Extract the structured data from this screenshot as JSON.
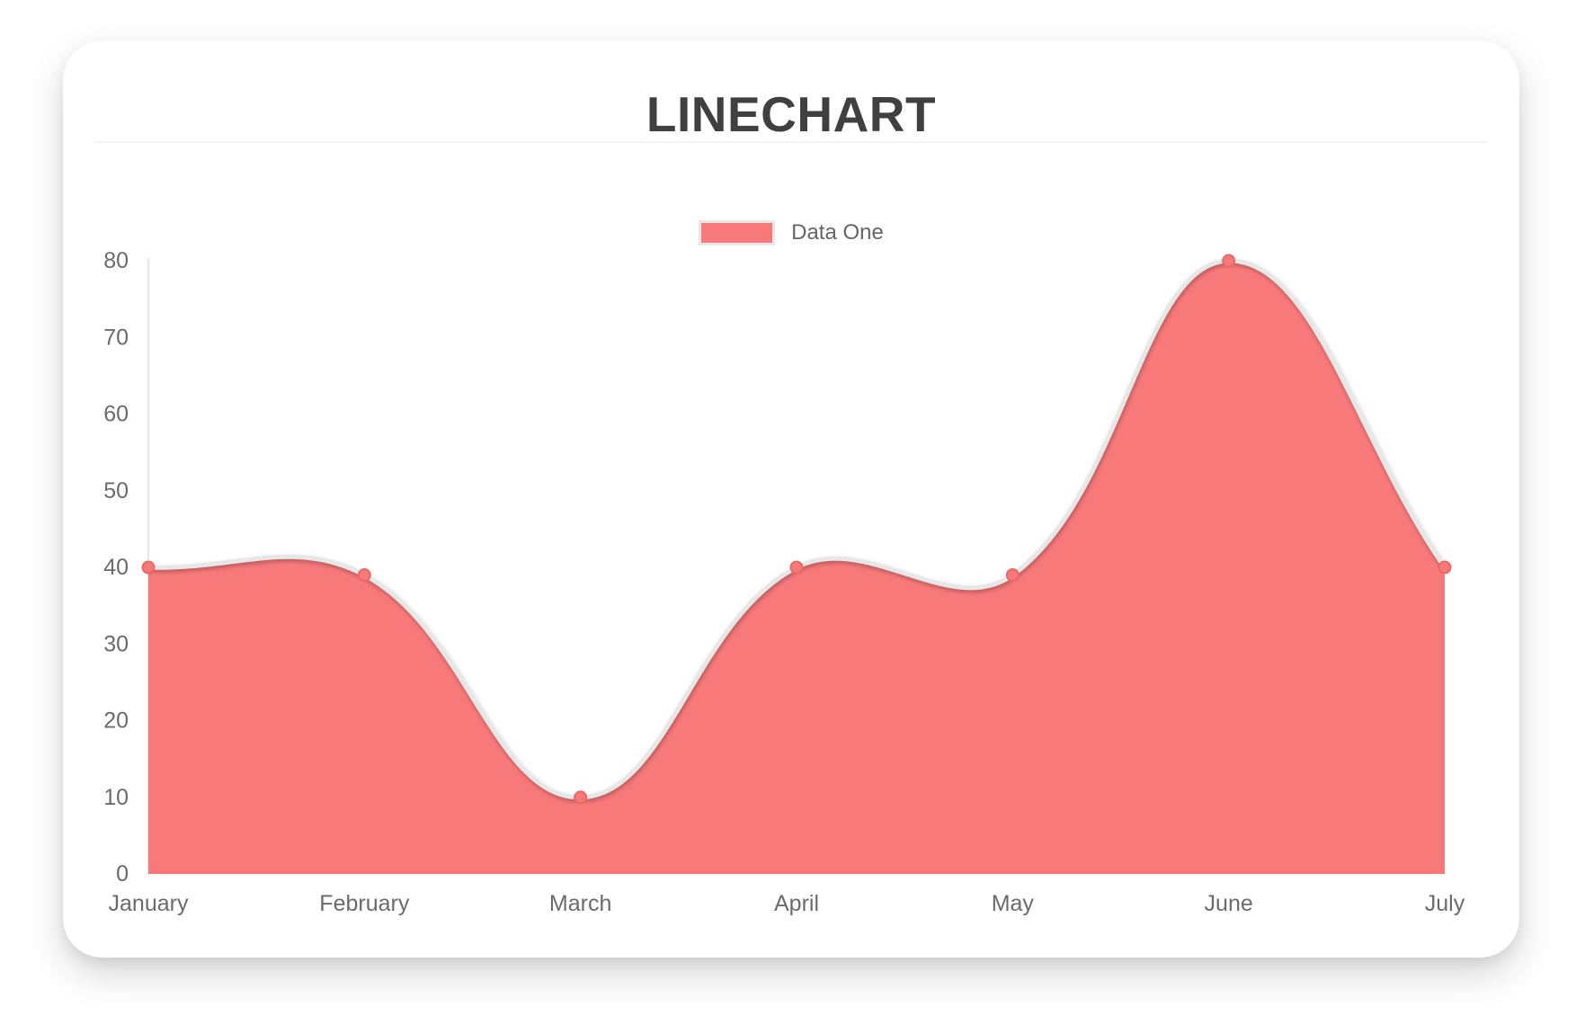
{
  "card": {
    "title": "LINECHART"
  },
  "chart_data": {
    "type": "area",
    "title": "LINECHART",
    "categories": [
      "January",
      "February",
      "March",
      "April",
      "May",
      "June",
      "July"
    ],
    "series": [
      {
        "name": "Data One",
        "values": [
          40,
          39,
          10,
          40,
          39,
          80,
          40
        ]
      }
    ],
    "xlabel": "",
    "ylabel": "",
    "ylim": [
      0,
      80
    ],
    "y_ticks": [
      0,
      10,
      20,
      30,
      40,
      50,
      60,
      70,
      80
    ],
    "grid": false,
    "legend_position": "top",
    "line_tension": 0.4,
    "colors": {
      "fill": "#f87979",
      "line": "#e7e7e7",
      "point_fill": "#f87979",
      "point_border": "#ea6862",
      "axis_line": "#e8e8e8",
      "tick_text": "#6b6b6b"
    }
  }
}
